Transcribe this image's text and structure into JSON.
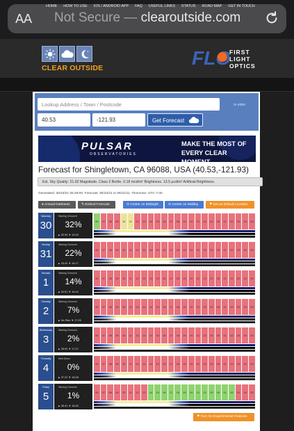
{
  "browser": {
    "text_size_label": "AA",
    "security_label": "Not Secure",
    "separator": "—",
    "domain": "clearoutside.com"
  },
  "header": {
    "logo_text": "CLEAR OUTSIDE",
    "partner_text_line1": "FIRST",
    "partner_text_line2": "LIGHT",
    "partner_text_line3": "OPTICS",
    "partner_mark": "FLO"
  },
  "nav": [
    "HOME",
    "HOW TO USE",
    "IOS / ANDROID APP",
    "FAQ",
    "USEFUL LINKS",
    "STATUS",
    "ROAD MAP",
    "GET IN TOUCH"
  ],
  "search": {
    "address_placeholder": "Lookup Address / Town / Postcode",
    "or_label": "or enter",
    "lat": "40.53",
    "lon": "-121.93",
    "get_forecast_label": "Get Forecast"
  },
  "banner": {
    "brand": "PULSAR",
    "brand_sub": "OBSERVATORIES",
    "slogan_line1": "MAKE THE MOST OF",
    "slogan_line2": "EVERY CLEAR MOMENT"
  },
  "forecast": {
    "title": "Forecast for Shingletown, CA 96088, USA (40.53,-121.93)",
    "sky_quality": "Est. Sky Quality: 21.92 Magnitude. Class 2 Bortle. 0.18 mcd/m² Brightness. 13.5 μcd/m² Artificial Brightness.",
    "generated": "Generated: 30/10/21 05:29:00. Forecast: 30/10/21 to 06/11/21. Timezone: UTC-7.00"
  },
  "buttons": {
    "annual_darkness": "Annual Darkness",
    "embed_forecast": "Embed Forecast",
    "center_midnight": "Center on Midnight",
    "center_midday": "Center on Midday",
    "set_default": "Set as Default Location",
    "experimental": "Turn On Experimental Features"
  },
  "colors": {
    "red": "#e8727c",
    "yellow": "#ede398",
    "green": "#8fd36f",
    "nav_blue": "#2a4e8e",
    "orange": "#f0922a"
  },
  "hours_labels": [
    "06",
    "07",
    "08",
    "09",
    "10",
    "11",
    "12",
    "13",
    "14",
    "15",
    "16",
    "17",
    "18",
    "19",
    "20",
    "21",
    "22",
    "23",
    "00",
    "01",
    "02",
    "03",
    "04",
    "05"
  ],
  "days": [
    {
      "dow": "Saturday",
      "date": "30",
      "phase": "Waning Crescent",
      "pct": "32%",
      "rise_set": "▲ 02:30  ▼ 15:49",
      "cells": "GRRRYYRRRRRRRRRRRRRRRRRR"
    },
    {
      "dow": "Sunday",
      "date": "31",
      "phase": "Waning Crescent",
      "pct": "22%",
      "rise_set": "▲ 03:40  ▼ 16:17",
      "cells": "RRRRRRRRRRRRRRRRRRRRRRRR"
    },
    {
      "dow": "Monday",
      "date": "1",
      "phase": "Waning Crescent",
      "pct": "14%",
      "rise_set": "▲ 04:51  ▼ 16:43",
      "cells": "RRRRRRRRRRRRRRRRRRRRRRRR"
    },
    {
      "dow": "Tuesday",
      "date": "2",
      "phase": "Waning Crescent",
      "pct": "7%",
      "rise_set": "▲ No Rise  ▼ 17:09",
      "cells": "RRRRRRRRRRRRRRRRRRRRRRRR"
    },
    {
      "dow": "Wednesday",
      "date": "3",
      "phase": "Waning Crescent",
      "pct": "2%",
      "rise_set": "▲ 06:00  ▼ 17:37",
      "cells": "RRRRRRRRRRRRRRRRRRRRRRRR"
    },
    {
      "dow": "Thursday",
      "date": "4",
      "phase": "New Moon",
      "pct": "0%",
      "rise_set": "▲ 07:22  ▼ 18:08",
      "cells": "RRRRRRRRRRRRRRRRRRRRRRRR"
    },
    {
      "dow": "Friday",
      "date": "5",
      "phase": "Waxing Crescent",
      "pct": "1%",
      "rise_set": "▲ 08:41  ▼ 18:45",
      "cells": "RRRRRRRRGGGGGGGGGGGGGRRR"
    }
  ]
}
